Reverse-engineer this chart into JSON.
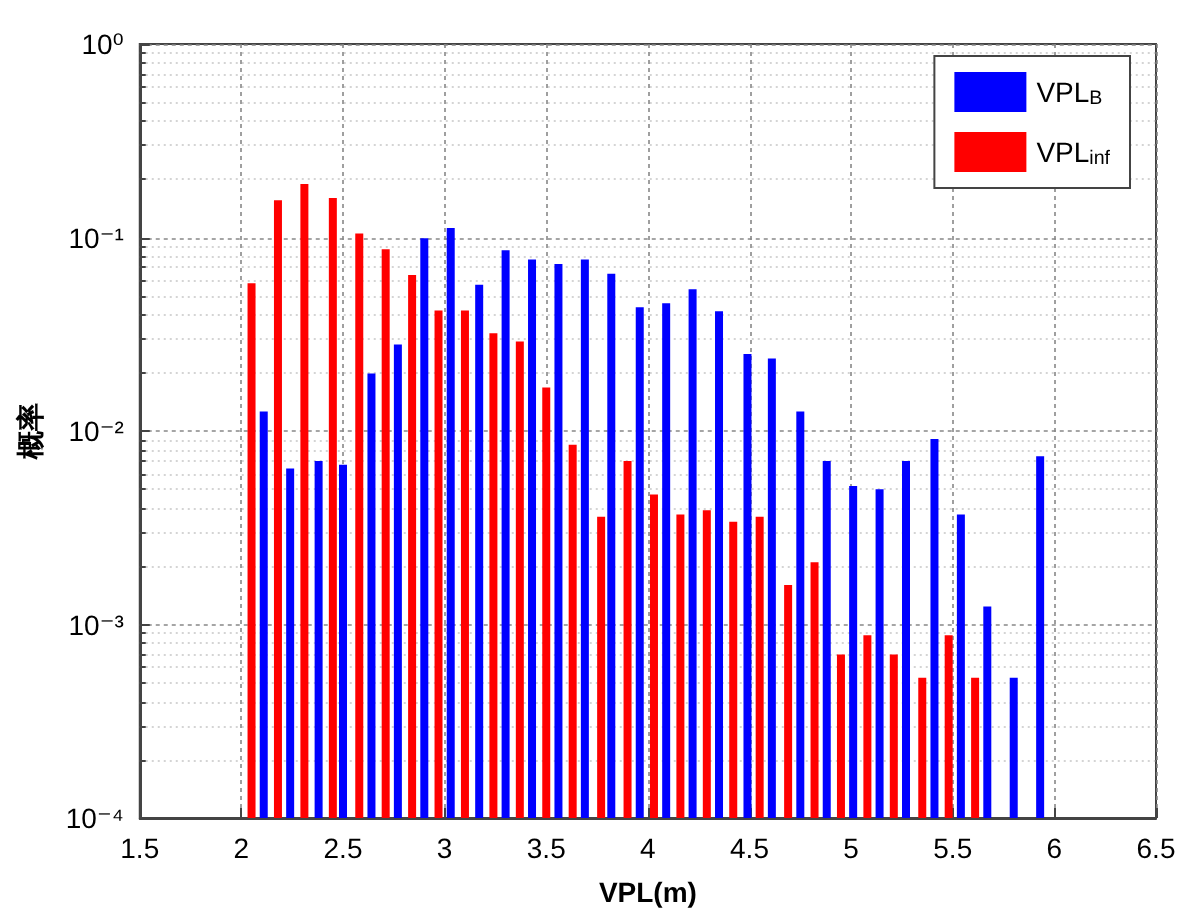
{
  "chart_data": {
    "type": "bar",
    "xlabel": "VPL(m)",
    "ylabel": "概率",
    "log": "y",
    "grid": true,
    "legend": "top right",
    "xlim": [
      1.5,
      6.5
    ],
    "xticks": [
      1.5,
      2,
      2.5,
      3,
      3.5,
      4,
      4.5,
      5,
      5.5,
      6,
      6.5
    ],
    "ylim": [
      0.0001,
      1
    ],
    "yticks": [
      {
        "value": 0.0001,
        "label": "10⁻⁴"
      },
      {
        "value": 0.001,
        "label": "10⁻³"
      },
      {
        "value": 0.01,
        "label": "10⁻²"
      },
      {
        "value": 0.1,
        "label": "10⁻¹"
      },
      {
        "value": 1,
        "label": "10⁰"
      }
    ],
    "series": [
      {
        "name": "VPL$_{B}$",
        "color": "#0000ff",
        "x": [
          2.11,
          2.24,
          2.38,
          2.5,
          2.64,
          2.77,
          2.9,
          3.03,
          3.17,
          3.3,
          3.43,
          3.56,
          3.69,
          3.82,
          3.96,
          4.09,
          4.22,
          4.35,
          4.49,
          4.61,
          4.75,
          4.88,
          5.01,
          5.14,
          5.27,
          5.41,
          5.54,
          5.67,
          5.8,
          5.93
        ],
        "values": [
          0.0126,
          0.0064,
          0.007,
          0.0067,
          0.0198,
          0.028,
          0.099,
          0.112,
          0.057,
          0.086,
          0.077,
          0.073,
          0.077,
          0.065,
          0.0436,
          0.0457,
          0.054,
          0.0416,
          0.025,
          0.0237,
          0.0126,
          0.007,
          0.0052,
          0.005,
          0.007,
          0.0091,
          0.0037,
          0.00124,
          0.00053,
          0.0074
        ]
      },
      {
        "name": "VPL$_{inf}$",
        "color": "#ff0000",
        "x": [
          2.05,
          2.18,
          2.31,
          2.45,
          2.58,
          2.71,
          2.84,
          2.97,
          3.1,
          3.24,
          3.37,
          3.5,
          3.63,
          3.77,
          3.9,
          4.03,
          4.16,
          4.29,
          4.42,
          4.55,
          4.69,
          4.82,
          4.95,
          5.08,
          5.21,
          5.35,
          5.48,
          5.61
        ],
        "values": [
          0.058,
          0.156,
          0.189,
          0.16,
          0.105,
          0.087,
          0.064,
          0.042,
          0.042,
          0.032,
          0.029,
          0.0168,
          0.0085,
          0.0036,
          0.007,
          0.0047,
          0.0037,
          0.0039,
          0.0034,
          0.0036,
          0.0016,
          0.0021,
          0.0007,
          0.00088,
          0.0007,
          0.00053,
          0.00088,
          0.00053
        ]
      }
    ]
  }
}
